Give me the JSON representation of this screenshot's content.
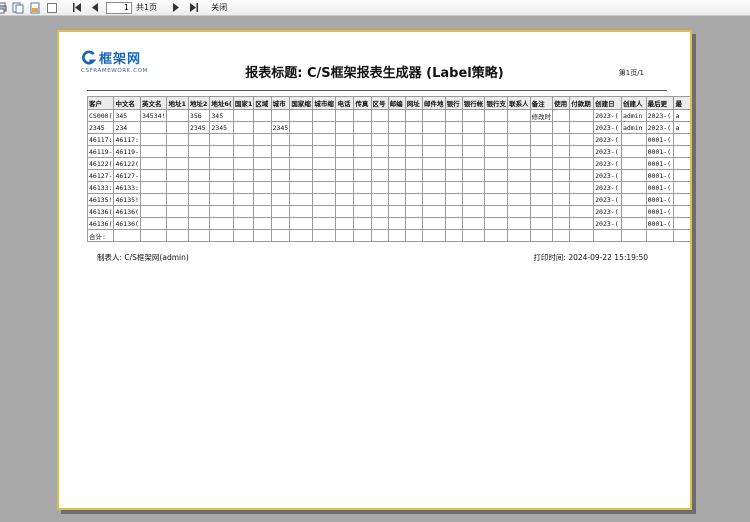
{
  "toolbar": {
    "icons": [
      "printer-icon",
      "copy-icon",
      "export-icon",
      "single-page-view-icon"
    ],
    "nav": [
      "first-page",
      "prev-page",
      "next-page",
      "last-page"
    ],
    "page_input": "1",
    "pages_label": "共1页",
    "close_label": "关闭"
  },
  "preview": {
    "logo_brand": "框架网",
    "logo_domain": "CSFRAMEWORK.COM",
    "title": "报表标题: C/S框架报表生成器 (Label策略)",
    "page_number": "第1页/1",
    "footer_left": "制表人: C/S框架网(admin)",
    "footer_right": "打印时间: 2024-09-22 15:19:50"
  },
  "table": {
    "columns": [
      "客户",
      "中文名",
      "英文名",
      "地址1",
      "地址2",
      "地址6(",
      "国家1",
      "区域",
      "城市",
      "国家缩",
      "城市缩",
      "电话",
      "传真",
      "区号",
      "邮编",
      "网址",
      "邮件地",
      "银行",
      "银行帐",
      "银行支",
      "联系人",
      "备注",
      "使用",
      "付款期",
      "创建日",
      "创建人",
      "最后更",
      "最"
    ],
    "rows": [
      [
        "CS000(",
        "345",
        "34534!",
        "",
        "356",
        "345",
        "",
        "",
        "",
        "",
        "",
        "",
        "",
        "",
        "",
        "",
        "",
        "",
        "",
        "",
        "",
        "修改时",
        "",
        "",
        "2023-(",
        "admin",
        "2023-(",
        "a"
      ],
      [
        "2345",
        "234",
        "",
        "",
        "2345",
        "2345",
        "",
        "",
        "2345",
        "",
        "",
        "",
        "",
        "",
        "",
        "",
        "",
        "",
        "",
        "",
        "",
        "",
        "",
        "",
        "2023-(",
        "admin",
        "2023-(",
        "a"
      ],
      [
        "46117:",
        "46117:",
        "",
        "",
        "",
        "",
        "",
        "",
        "",
        "",
        "",
        "",
        "",
        "",
        "",
        "",
        "",
        "",
        "",
        "",
        "",
        "",
        "",
        "",
        "2023-(",
        "",
        "0001-(",
        ""
      ],
      [
        "46119-",
        "46119-",
        "",
        "",
        "",
        "",
        "",
        "",
        "",
        "",
        "",
        "",
        "",
        "",
        "",
        "",
        "",
        "",
        "",
        "",
        "",
        "",
        "",
        "",
        "2023-(",
        "",
        "0001-(",
        ""
      ],
      [
        "46122(",
        "46122(",
        "",
        "",
        "",
        "",
        "",
        "",
        "",
        "",
        "",
        "",
        "",
        "",
        "",
        "",
        "",
        "",
        "",
        "",
        "",
        "",
        "",
        "",
        "2023-(",
        "",
        "0001-(",
        ""
      ],
      [
        "46127-",
        "46127-",
        "",
        "",
        "",
        "",
        "",
        "",
        "",
        "",
        "",
        "",
        "",
        "",
        "",
        "",
        "",
        "",
        "",
        "",
        "",
        "",
        "",
        "",
        "2023-(",
        "",
        "0001-(",
        ""
      ],
      [
        "46133:",
        "46133:",
        "",
        "",
        "",
        "",
        "",
        "",
        "",
        "",
        "",
        "",
        "",
        "",
        "",
        "",
        "",
        "",
        "",
        "",
        "",
        "",
        "",
        "",
        "2023-(",
        "",
        "0001-(",
        ""
      ],
      [
        "46135!",
        "46135!",
        "",
        "",
        "",
        "",
        "",
        "",
        "",
        "",
        "",
        "",
        "",
        "",
        "",
        "",
        "",
        "",
        "",
        "",
        "",
        "",
        "",
        "",
        "2023-(",
        "",
        "0001-(",
        ""
      ],
      [
        "46136(",
        "46136(",
        "",
        "",
        "",
        "",
        "",
        "",
        "",
        "",
        "",
        "",
        "",
        "",
        "",
        "",
        "",
        "",
        "",
        "",
        "",
        "",
        "",
        "",
        "2023-(",
        "",
        "0001-(",
        ""
      ],
      [
        "46136(",
        "46136(",
        "",
        "",
        "",
        "",
        "",
        "",
        "",
        "",
        "",
        "",
        "",
        "",
        "",
        "",
        "",
        "",
        "",
        "",
        "",
        "",
        "",
        "",
        "2023-(",
        "",
        "0001-(",
        ""
      ]
    ],
    "total_row": [
      "合计:",
      "",
      "",
      "",
      "",
      "",
      "",
      "",
      "",
      "",
      "",
      "",
      "",
      "",
      "",
      "",
      "",
      "",
      "",
      "",
      "",
      "",
      "",
      "",
      "",
      "",
      "",
      ""
    ]
  },
  "colors": {
    "page_border_gold": "#dfbe4f",
    "logo_blue": "#1a66b6",
    "background_gray": "#a9a9a9"
  }
}
